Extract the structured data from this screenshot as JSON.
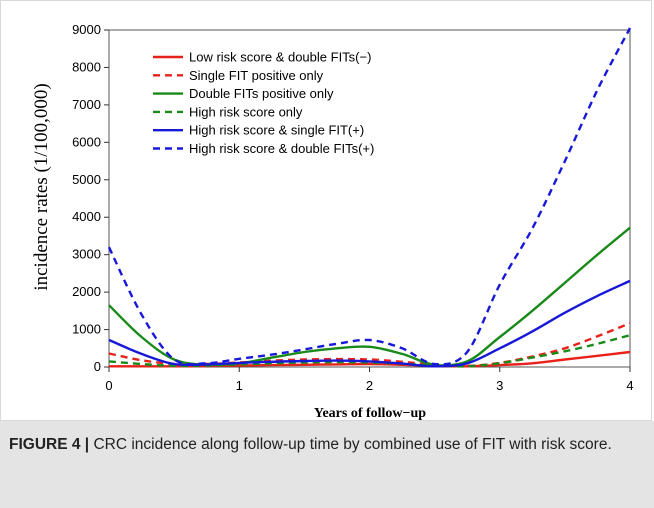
{
  "figure": {
    "caption_label": "FIGURE 4 |",
    "caption_text": " CRC incidence along follow-up time by combined use of FIT with risk score."
  },
  "chart_data": {
    "type": "line",
    "xlabel": "Years of follow−up",
    "ylabel": "incidence rates (1/100,000)",
    "xlim": [
      0,
      4
    ],
    "ylim": [
      0,
      9000
    ],
    "x_ticks": [
      "0",
      "1",
      "2",
      "3",
      "4"
    ],
    "y_ticks": [
      "0",
      "1000",
      "2000",
      "3000",
      "4000",
      "5000",
      "6000",
      "7000",
      "8000",
      "9000"
    ],
    "legend_position": "top-left",
    "grid": false,
    "x": [
      0,
      0.25,
      0.5,
      0.75,
      1.0,
      1.25,
      1.5,
      1.75,
      2.0,
      2.25,
      2.5,
      2.75,
      3.0,
      3.25,
      3.5,
      3.75,
      4.0
    ],
    "series": [
      {
        "name": "Low risk score & double FITs(−)",
        "color": "#e8211a",
        "dash": "solid",
        "values": [
          20,
          20,
          20,
          25,
          40,
          50,
          60,
          70,
          80,
          60,
          30,
          20,
          50,
          100,
          200,
          300,
          400
        ]
      },
      {
        "name": "Single FIT positive only",
        "color": "#e8211a",
        "dash": "dashed",
        "values": [
          360,
          180,
          80,
          80,
          120,
          170,
          200,
          210,
          200,
          140,
          60,
          30,
          110,
          280,
          500,
          820,
          1170
        ]
      },
      {
        "name": "Double FITs positive only",
        "color": "#1a8a1a",
        "dash": "solid",
        "values": [
          1650,
          800,
          200,
          60,
          100,
          250,
          400,
          500,
          540,
          350,
          60,
          150,
          800,
          1500,
          2250,
          3000,
          3720
        ]
      },
      {
        "name": "High risk score only",
        "color": "#1a8a1a",
        "dash": "dashed",
        "values": [
          150,
          80,
          30,
          40,
          70,
          100,
          120,
          130,
          120,
          90,
          40,
          20,
          100,
          250,
          420,
          620,
          850
        ]
      },
      {
        "name": "High risk score & single FIT(+)",
        "color": "#1818d8",
        "dash": "solid",
        "values": [
          720,
          350,
          80,
          70,
          110,
          140,
          160,
          170,
          150,
          90,
          20,
          100,
          500,
          950,
          1450,
          1900,
          2300
        ]
      },
      {
        "name": "High risk score & double FITs(+)",
        "color": "#1818d8",
        "dash": "dashed",
        "values": [
          3200,
          1400,
          200,
          100,
          220,
          330,
          470,
          620,
          720,
          500,
          80,
          400,
          2200,
          3700,
          5500,
          7400,
          9100
        ]
      }
    ]
  }
}
